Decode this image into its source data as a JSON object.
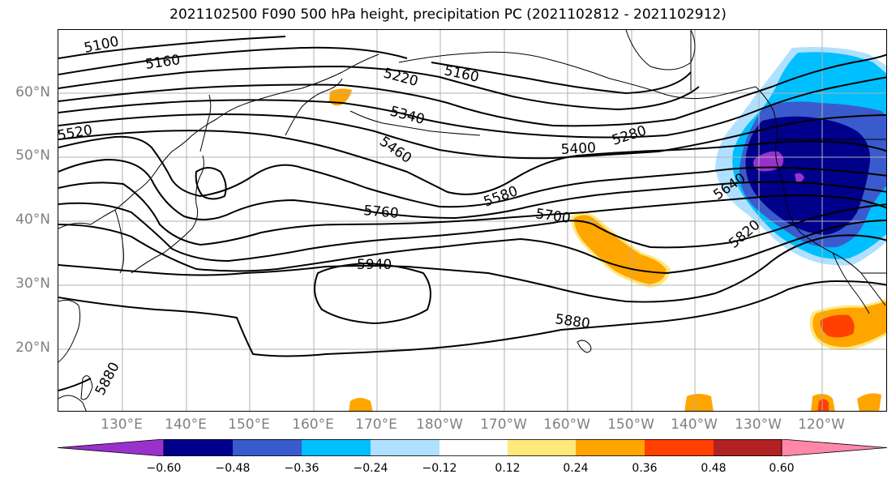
{
  "title": "2021102500 F090 500 hPa height, precipitation PC (2021102812 - 2021102912)",
  "lat_labels": [
    "60°N",
    "50°N",
    "40°N",
    "30°N",
    "20°N"
  ],
  "lon_labels": [
    "130°E",
    "140°E",
    "150°E",
    "160°E",
    "170°E",
    "180°W",
    "170°W",
    "160°W",
    "150°W",
    "140°W",
    "130°W",
    "120°W"
  ],
  "contour_labels": [
    "5100",
    "5160",
    "5220",
    "5160",
    "5340",
    "5280",
    "5400",
    "5460",
    "5520",
    "5580",
    "5640",
    "5700",
    "5760",
    "5820",
    "5940",
    "5880",
    "5880"
  ],
  "colorbar": {
    "ticks": [
      "−0.60",
      "−0.48",
      "−0.36",
      "−0.24",
      "−0.12",
      "0.12",
      "0.24",
      "0.36",
      "0.48",
      "0.60"
    ],
    "colors": [
      "#9932cc",
      "#00008b",
      "#3a5bcd",
      "#00bfff",
      "#b0e0ff",
      "#ffffff",
      "#ffe87c",
      "#ffa500",
      "#ff4000",
      "#b22222",
      "#ff88aa"
    ]
  },
  "colors": {
    "contour": "#000000",
    "grid": "#b0b0b0",
    "axis_label": "#808080"
  }
}
